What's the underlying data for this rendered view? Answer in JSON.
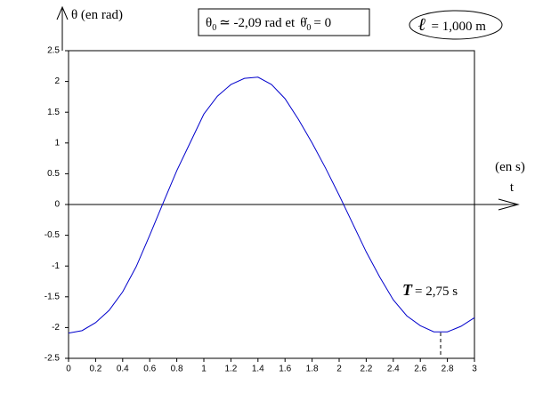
{
  "chart_data": {
    "type": "line",
    "y_label": "θ (en rad)",
    "x_label": "t",
    "x_unit": "(en s)",
    "initial_conditions": [
      "θ",
      "0",
      "≃ -2,09 rad   et",
      "θ̇",
      "0",
      "= 0"
    ],
    "length": [
      "ℓ",
      "= 1,000 m"
    ],
    "period": [
      "T",
      "= 2,75 s"
    ],
    "x": [
      0,
      0.1,
      0.2,
      0.3,
      0.4,
      0.5,
      0.6,
      0.7,
      0.8,
      0.9,
      1.0,
      1.1,
      1.2,
      1.3,
      1.4,
      1.5,
      1.6,
      1.7,
      1.8,
      1.9,
      2.0,
      2.1,
      2.2,
      2.3,
      2.4,
      2.5,
      2.6,
      2.7,
      2.8,
      2.9,
      3.0
    ],
    "series": [
      {
        "color": "#0000cc",
        "values": [
          -2.09,
          -2.05,
          -1.92,
          -1.72,
          -1.42,
          -1.01,
          -0.5,
          0.03,
          0.55,
          1.01,
          1.47,
          1.76,
          1.95,
          2.05,
          2.07,
          1.95,
          1.72,
          1.38,
          1.0,
          0.59,
          0.15,
          -0.31,
          -0.77,
          -1.18,
          -1.55,
          -1.81,
          -1.97,
          -2.07,
          -2.07,
          -1.98,
          -1.84
        ]
      }
    ],
    "xlim": [
      0,
      3
    ],
    "ylim": [
      -2.5,
      2.5
    ],
    "xticks": [
      0,
      0.2,
      0.4,
      0.6,
      0.8,
      1,
      1.2,
      1.4,
      1.6,
      1.8,
      2,
      2.2,
      2.4,
      2.6,
      2.8,
      3
    ],
    "yticks": [
      2.5,
      2,
      1.5,
      1,
      0.5,
      0,
      -0.5,
      -1,
      -1.5,
      -2,
      -2.5
    ]
  }
}
